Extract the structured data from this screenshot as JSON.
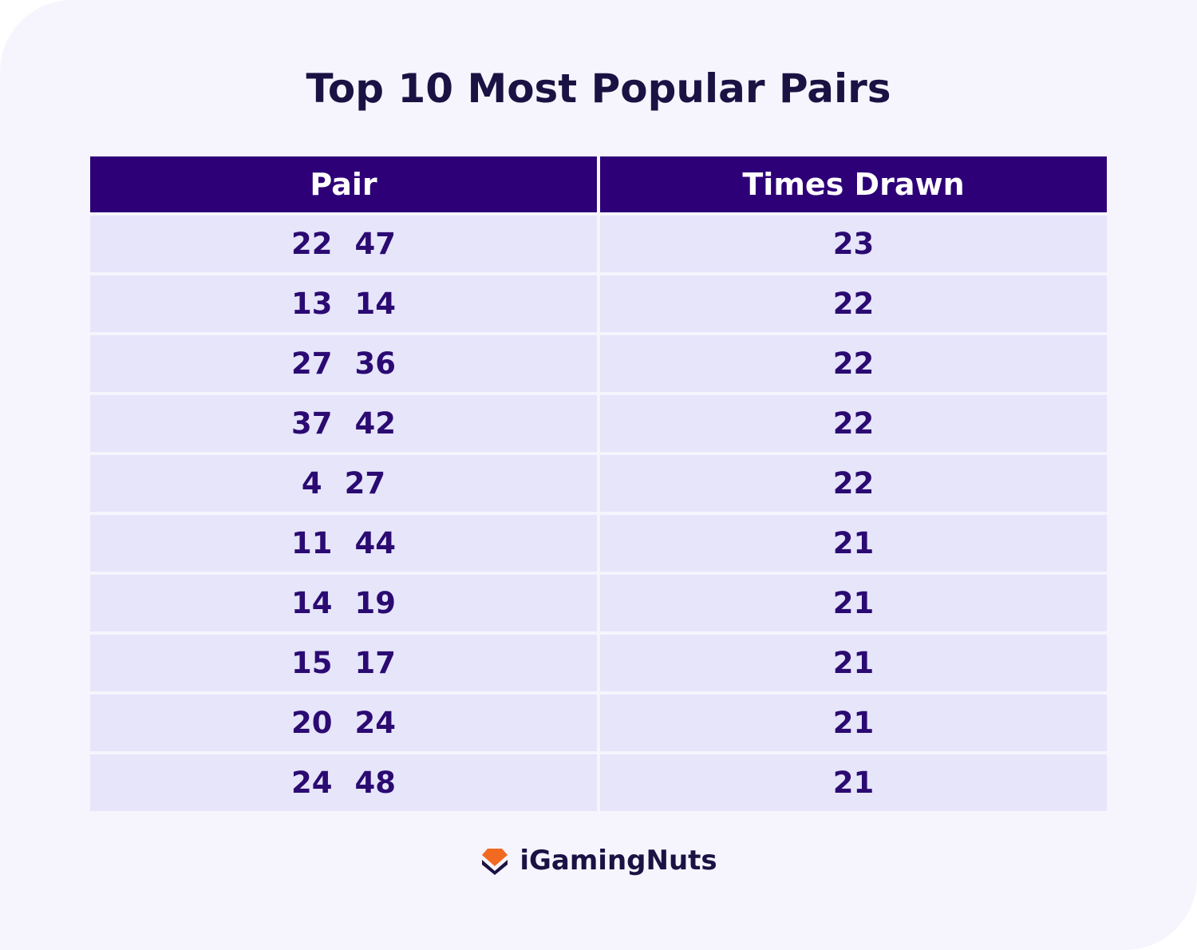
{
  "header": {
    "title": "Top 10 Most Popular Pairs"
  },
  "table": {
    "columns": [
      "Pair",
      "Times Drawn"
    ],
    "rows": [
      {
        "pair": [
          22,
          47
        ],
        "times_drawn": 23
      },
      {
        "pair": [
          13,
          14
        ],
        "times_drawn": 22
      },
      {
        "pair": [
          27,
          36
        ],
        "times_drawn": 22
      },
      {
        "pair": [
          37,
          42
        ],
        "times_drawn": 22
      },
      {
        "pair": [
          4,
          27
        ],
        "times_drawn": 22
      },
      {
        "pair": [
          11,
          44
        ],
        "times_drawn": 21
      },
      {
        "pair": [
          14,
          19
        ],
        "times_drawn": 21
      },
      {
        "pair": [
          15,
          17
        ],
        "times_drawn": 21
      },
      {
        "pair": [
          20,
          24
        ],
        "times_drawn": 21
      },
      {
        "pair": [
          24,
          48
        ],
        "times_drawn": 21
      }
    ]
  },
  "footer": {
    "brand": "iGamingNuts"
  }
}
